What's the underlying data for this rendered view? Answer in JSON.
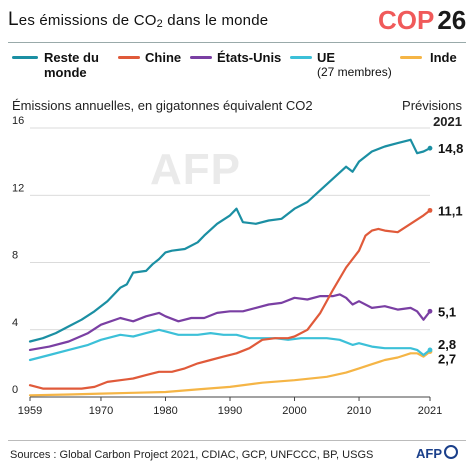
{
  "header": {
    "title_lead": "L",
    "title_rest": "es émissions de CO",
    "title_sub": "2",
    "title_tail": " dans le monde",
    "badge_text": "COP",
    "badge_number": "26"
  },
  "chart_data": {
    "type": "line",
    "title": "Les émissions de CO2 dans le monde",
    "ylabel": "Émissions annuelles, en gigatonnes équivalent CO2",
    "forecast_label": "Prévisions",
    "forecast_year": "2021",
    "xlim": [
      1959,
      2021
    ],
    "ylim": [
      0,
      16
    ],
    "xticks": [
      "1959",
      "1970",
      "1980",
      "1990",
      "2000",
      "2010",
      "2021"
    ],
    "yticks": [
      "0",
      "4",
      "8",
      "12",
      "16"
    ],
    "legend_position": "top",
    "grid": true,
    "series": [
      {
        "name": "Reste du monde",
        "color": "#1b8fa3",
        "end_label": "14,8",
        "points": [
          [
            1959,
            3.3
          ],
          [
            1961,
            3.5
          ],
          [
            1963,
            3.8
          ],
          [
            1965,
            4.2
          ],
          [
            1967,
            4.6
          ],
          [
            1969,
            5.1
          ],
          [
            1971,
            5.7
          ],
          [
            1973,
            6.5
          ],
          [
            1974,
            6.7
          ],
          [
            1975,
            7.4
          ],
          [
            1977,
            7.5
          ],
          [
            1978,
            7.9
          ],
          [
            1979,
            8.2
          ],
          [
            1980,
            8.6
          ],
          [
            1981,
            8.7
          ],
          [
            1983,
            8.8
          ],
          [
            1985,
            9.2
          ],
          [
            1986,
            9.6
          ],
          [
            1988,
            10.3
          ],
          [
            1990,
            10.8
          ],
          [
            1991,
            11.2
          ],
          [
            1992,
            10.4
          ],
          [
            1994,
            10.3
          ],
          [
            1996,
            10.5
          ],
          [
            1998,
            10.6
          ],
          [
            2000,
            11.2
          ],
          [
            2002,
            11.6
          ],
          [
            2004,
            12.3
          ],
          [
            2006,
            13.0
          ],
          [
            2008,
            13.7
          ],
          [
            2009,
            13.4
          ],
          [
            2010,
            14.0
          ],
          [
            2012,
            14.6
          ],
          [
            2014,
            14.9
          ],
          [
            2016,
            15.1
          ],
          [
            2018,
            15.3
          ],
          [
            2019,
            14.5
          ],
          [
            2020,
            14.6
          ],
          [
            2021,
            14.8
          ]
        ]
      },
      {
        "name": "Chine",
        "color": "#e05a3a",
        "end_label": "11,1",
        "points": [
          [
            1959,
            0.7
          ],
          [
            1961,
            0.5
          ],
          [
            1963,
            0.5
          ],
          [
            1967,
            0.5
          ],
          [
            1969,
            0.6
          ],
          [
            1971,
            0.9
          ],
          [
            1973,
            1.0
          ],
          [
            1975,
            1.1
          ],
          [
            1977,
            1.3
          ],
          [
            1979,
            1.5
          ],
          [
            1981,
            1.5
          ],
          [
            1983,
            1.7
          ],
          [
            1985,
            2.0
          ],
          [
            1987,
            2.2
          ],
          [
            1989,
            2.4
          ],
          [
            1991,
            2.6
          ],
          [
            1993,
            2.9
          ],
          [
            1995,
            3.4
          ],
          [
            1997,
            3.5
          ],
          [
            1999,
            3.5
          ],
          [
            2000,
            3.6
          ],
          [
            2002,
            4.0
          ],
          [
            2004,
            5.0
          ],
          [
            2006,
            6.4
          ],
          [
            2008,
            7.7
          ],
          [
            2010,
            8.7
          ],
          [
            2011,
            9.6
          ],
          [
            2012,
            9.9
          ],
          [
            2013,
            10.0
          ],
          [
            2014,
            9.9
          ],
          [
            2016,
            9.8
          ],
          [
            2018,
            10.3
          ],
          [
            2020,
            10.8
          ],
          [
            2021,
            11.1
          ]
        ]
      },
      {
        "name": "États-Unis",
        "color": "#7a3fa3",
        "end_label": "5,1",
        "points": [
          [
            1959,
            2.8
          ],
          [
            1962,
            3.0
          ],
          [
            1965,
            3.3
          ],
          [
            1968,
            3.8
          ],
          [
            1970,
            4.3
          ],
          [
            1973,
            4.7
          ],
          [
            1975,
            4.5
          ],
          [
            1977,
            4.8
          ],
          [
            1979,
            5.0
          ],
          [
            1980,
            4.8
          ],
          [
            1982,
            4.5
          ],
          [
            1984,
            4.7
          ],
          [
            1986,
            4.7
          ],
          [
            1988,
            5.0
          ],
          [
            1990,
            5.1
          ],
          [
            1992,
            5.1
          ],
          [
            1994,
            5.3
          ],
          [
            1996,
            5.5
          ],
          [
            1998,
            5.6
          ],
          [
            2000,
            5.9
          ],
          [
            2002,
            5.8
          ],
          [
            2004,
            6.0
          ],
          [
            2006,
            6.0
          ],
          [
            2007,
            6.1
          ],
          [
            2008,
            5.9
          ],
          [
            2009,
            5.5
          ],
          [
            2010,
            5.7
          ],
          [
            2012,
            5.3
          ],
          [
            2014,
            5.4
          ],
          [
            2016,
            5.2
          ],
          [
            2018,
            5.3
          ],
          [
            2019,
            5.1
          ],
          [
            2020,
            4.6
          ],
          [
            2021,
            5.1
          ]
        ]
      },
      {
        "name": "UE",
        "name_note": "(27 membres)",
        "color": "#3cc0d8",
        "end_label": "2,8",
        "points": [
          [
            1959,
            2.2
          ],
          [
            1962,
            2.5
          ],
          [
            1965,
            2.8
          ],
          [
            1968,
            3.1
          ],
          [
            1970,
            3.4
          ],
          [
            1973,
            3.7
          ],
          [
            1975,
            3.6
          ],
          [
            1977,
            3.8
          ],
          [
            1979,
            4.0
          ],
          [
            1980,
            3.9
          ],
          [
            1982,
            3.7
          ],
          [
            1985,
            3.7
          ],
          [
            1987,
            3.8
          ],
          [
            1989,
            3.7
          ],
          [
            1991,
            3.7
          ],
          [
            1993,
            3.5
          ],
          [
            1995,
            3.5
          ],
          [
            1997,
            3.5
          ],
          [
            1999,
            3.4
          ],
          [
            2001,
            3.5
          ],
          [
            2003,
            3.5
          ],
          [
            2005,
            3.5
          ],
          [
            2007,
            3.4
          ],
          [
            2009,
            3.1
          ],
          [
            2010,
            3.2
          ],
          [
            2012,
            3.0
          ],
          [
            2014,
            2.9
          ],
          [
            2016,
            2.9
          ],
          [
            2018,
            2.9
          ],
          [
            2019,
            2.8
          ],
          [
            2020,
            2.5
          ],
          [
            2021,
            2.8
          ]
        ]
      },
      {
        "name": "Inde",
        "color": "#f5b546",
        "end_label": "2,7",
        "points": [
          [
            1959,
            0.1
          ],
          [
            1965,
            0.15
          ],
          [
            1970,
            0.2
          ],
          [
            1975,
            0.25
          ],
          [
            1980,
            0.3
          ],
          [
            1985,
            0.45
          ],
          [
            1990,
            0.6
          ],
          [
            1995,
            0.85
          ],
          [
            2000,
            1.0
          ],
          [
            2005,
            1.2
          ],
          [
            2008,
            1.45
          ],
          [
            2010,
            1.7
          ],
          [
            2012,
            1.95
          ],
          [
            2014,
            2.2
          ],
          [
            2016,
            2.35
          ],
          [
            2018,
            2.6
          ],
          [
            2019,
            2.6
          ],
          [
            2020,
            2.4
          ],
          [
            2021,
            2.7
          ]
        ]
      }
    ]
  },
  "footer": {
    "source": "Sources : Global Carbon Project 2021, CDIAC, GCP, UNFCCC, BP, USGS",
    "logo": "AFP",
    "watermark": "AFP"
  }
}
